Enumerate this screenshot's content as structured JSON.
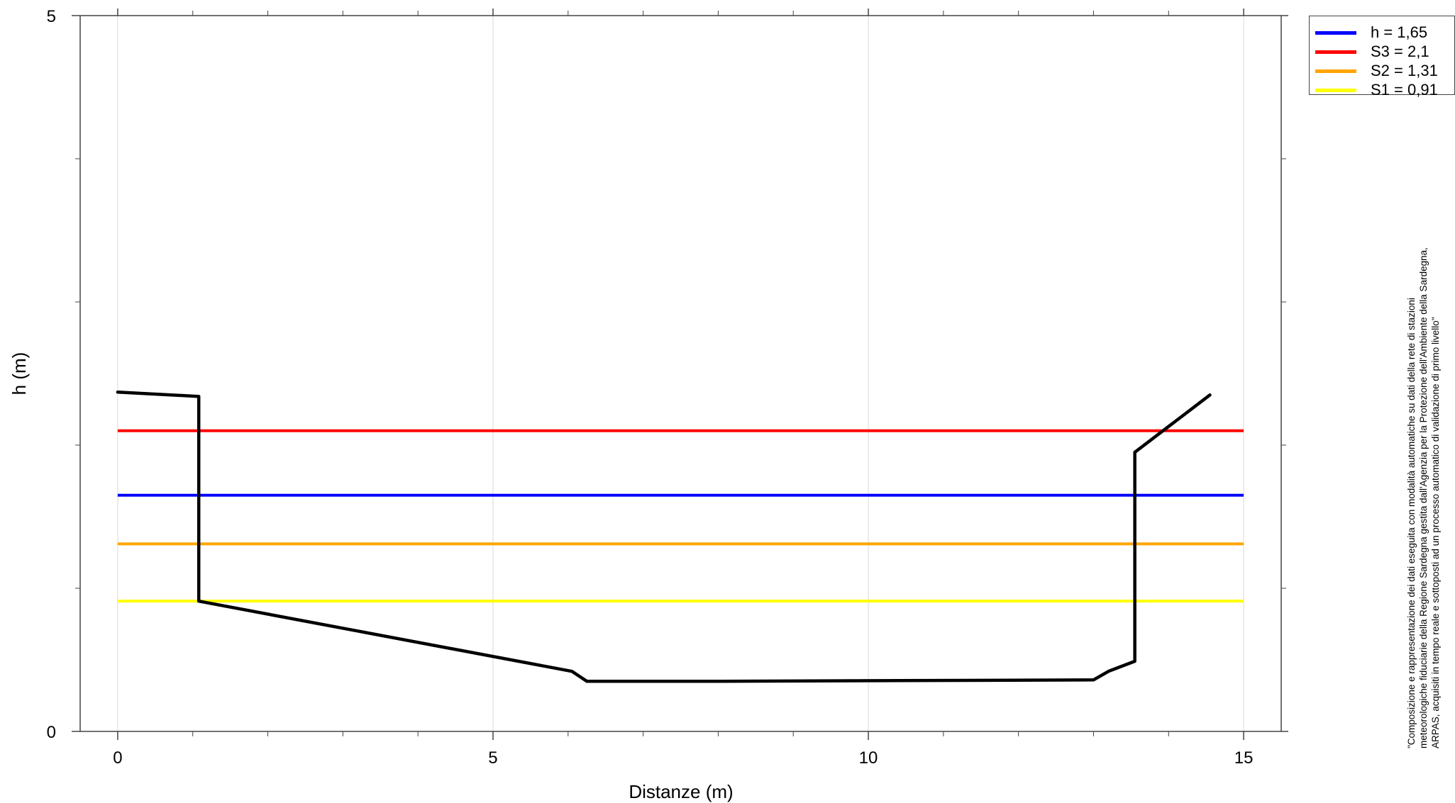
{
  "chart_data": {
    "type": "line",
    "xlabel": "Distanze (m)",
    "ylabel": "h (m)",
    "xlim": [
      -0.5,
      15.5
    ],
    "ylim": [
      0,
      5
    ],
    "xticks": [
      0,
      5,
      10,
      15
    ],
    "yticks": [
      0,
      5
    ],
    "grid": "vertical",
    "legend_position": "top-right outside",
    "series": [
      {
        "name": "h = 1,65",
        "color": "#0000ff",
        "kind": "hline",
        "y": 1.65
      },
      {
        "name": "S3 = 2,1",
        "color": "#ff0000",
        "kind": "hline",
        "y": 2.1
      },
      {
        "name": "S2 = 1,31",
        "color": "#ffa500",
        "kind": "hline",
        "y": 1.31
      },
      {
        "name": "S1 = 0,91",
        "color": "#ffff00",
        "kind": "hline",
        "y": 0.91
      }
    ],
    "profile": {
      "color": "#000000",
      "x": [
        0,
        1.08,
        1.08,
        6.05,
        6.25,
        7.9,
        13.0,
        13.2,
        13.55,
        13.55,
        14.55
      ],
      "y": [
        2.37,
        2.34,
        0.91,
        0.42,
        0.35,
        0.35,
        0.36,
        0.42,
        0.49,
        1.95,
        2.35
      ]
    },
    "hline_x_range": [
      0,
      15
    ]
  },
  "credit": [
    "\"Composizione e rappresentazione dei dati eseguita con modalità automatiche su dati della rete di stazioni",
    "meteorologiche fiduciarie della Regione Sardegna gestita dall'Agenzia per la Protezione dell'Ambiente della Sardegna,",
    "ARPAS, acquisiti in tempo reale e sottoposti ad un processo automatico di validazione di primo livello\""
  ]
}
